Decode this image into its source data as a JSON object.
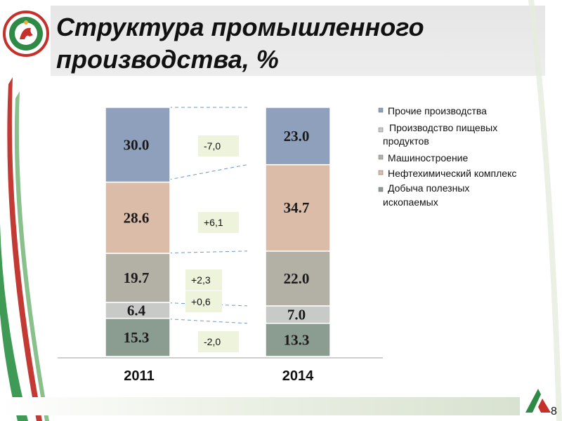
{
  "title": {
    "line1": "Структура промышленного",
    "line2": "производства, %"
  },
  "slide_number": "8",
  "colors": {
    "mining": "#8b9d90",
    "food": "#c8cac8",
    "machinery": "#b3b0a6",
    "petrochem": "#dbbca8",
    "other": "#8ea0bb",
    "change_box": "#eef3dc",
    "dashed_line": "#6c98c6"
  },
  "chart_data": {
    "type": "bar",
    "stacked": true,
    "categories": [
      "2011",
      "2014"
    ],
    "series": [
      {
        "name": "Добыча полезных ископаемых",
        "values": [
          15.3,
          13.3
        ],
        "labels": [
          "15.3",
          "13.3"
        ]
      },
      {
        "name": "Производство пищевых продуктов",
        "values": [
          6.4,
          7.0
        ],
        "labels": [
          "6.4",
          "7.0"
        ]
      },
      {
        "name": "Машиностроение",
        "values": [
          19.7,
          22.0
        ],
        "labels": [
          "19.7",
          "22.0"
        ]
      },
      {
        "name": "Нефтехимический комплекс",
        "values": [
          28.6,
          34.7
        ],
        "labels": [
          "28.6",
          "34.7"
        ]
      },
      {
        "name": "Прочие производства",
        "values": [
          30.0,
          23.0
        ],
        "labels": [
          "30.0",
          "23.0"
        ]
      }
    ],
    "changes": [
      "-2,0",
      "+0,6",
      "+2,3",
      "+6,1",
      "-7,0"
    ],
    "legend": [
      "Прочие производства",
      "Производство пищевых продуктов",
      "Машиностроение",
      "Нефтехимический комплекс",
      "Добыча полезных ископаемых"
    ],
    "ylim": [
      0,
      100
    ],
    "grid": false,
    "legend_position": "right"
  }
}
